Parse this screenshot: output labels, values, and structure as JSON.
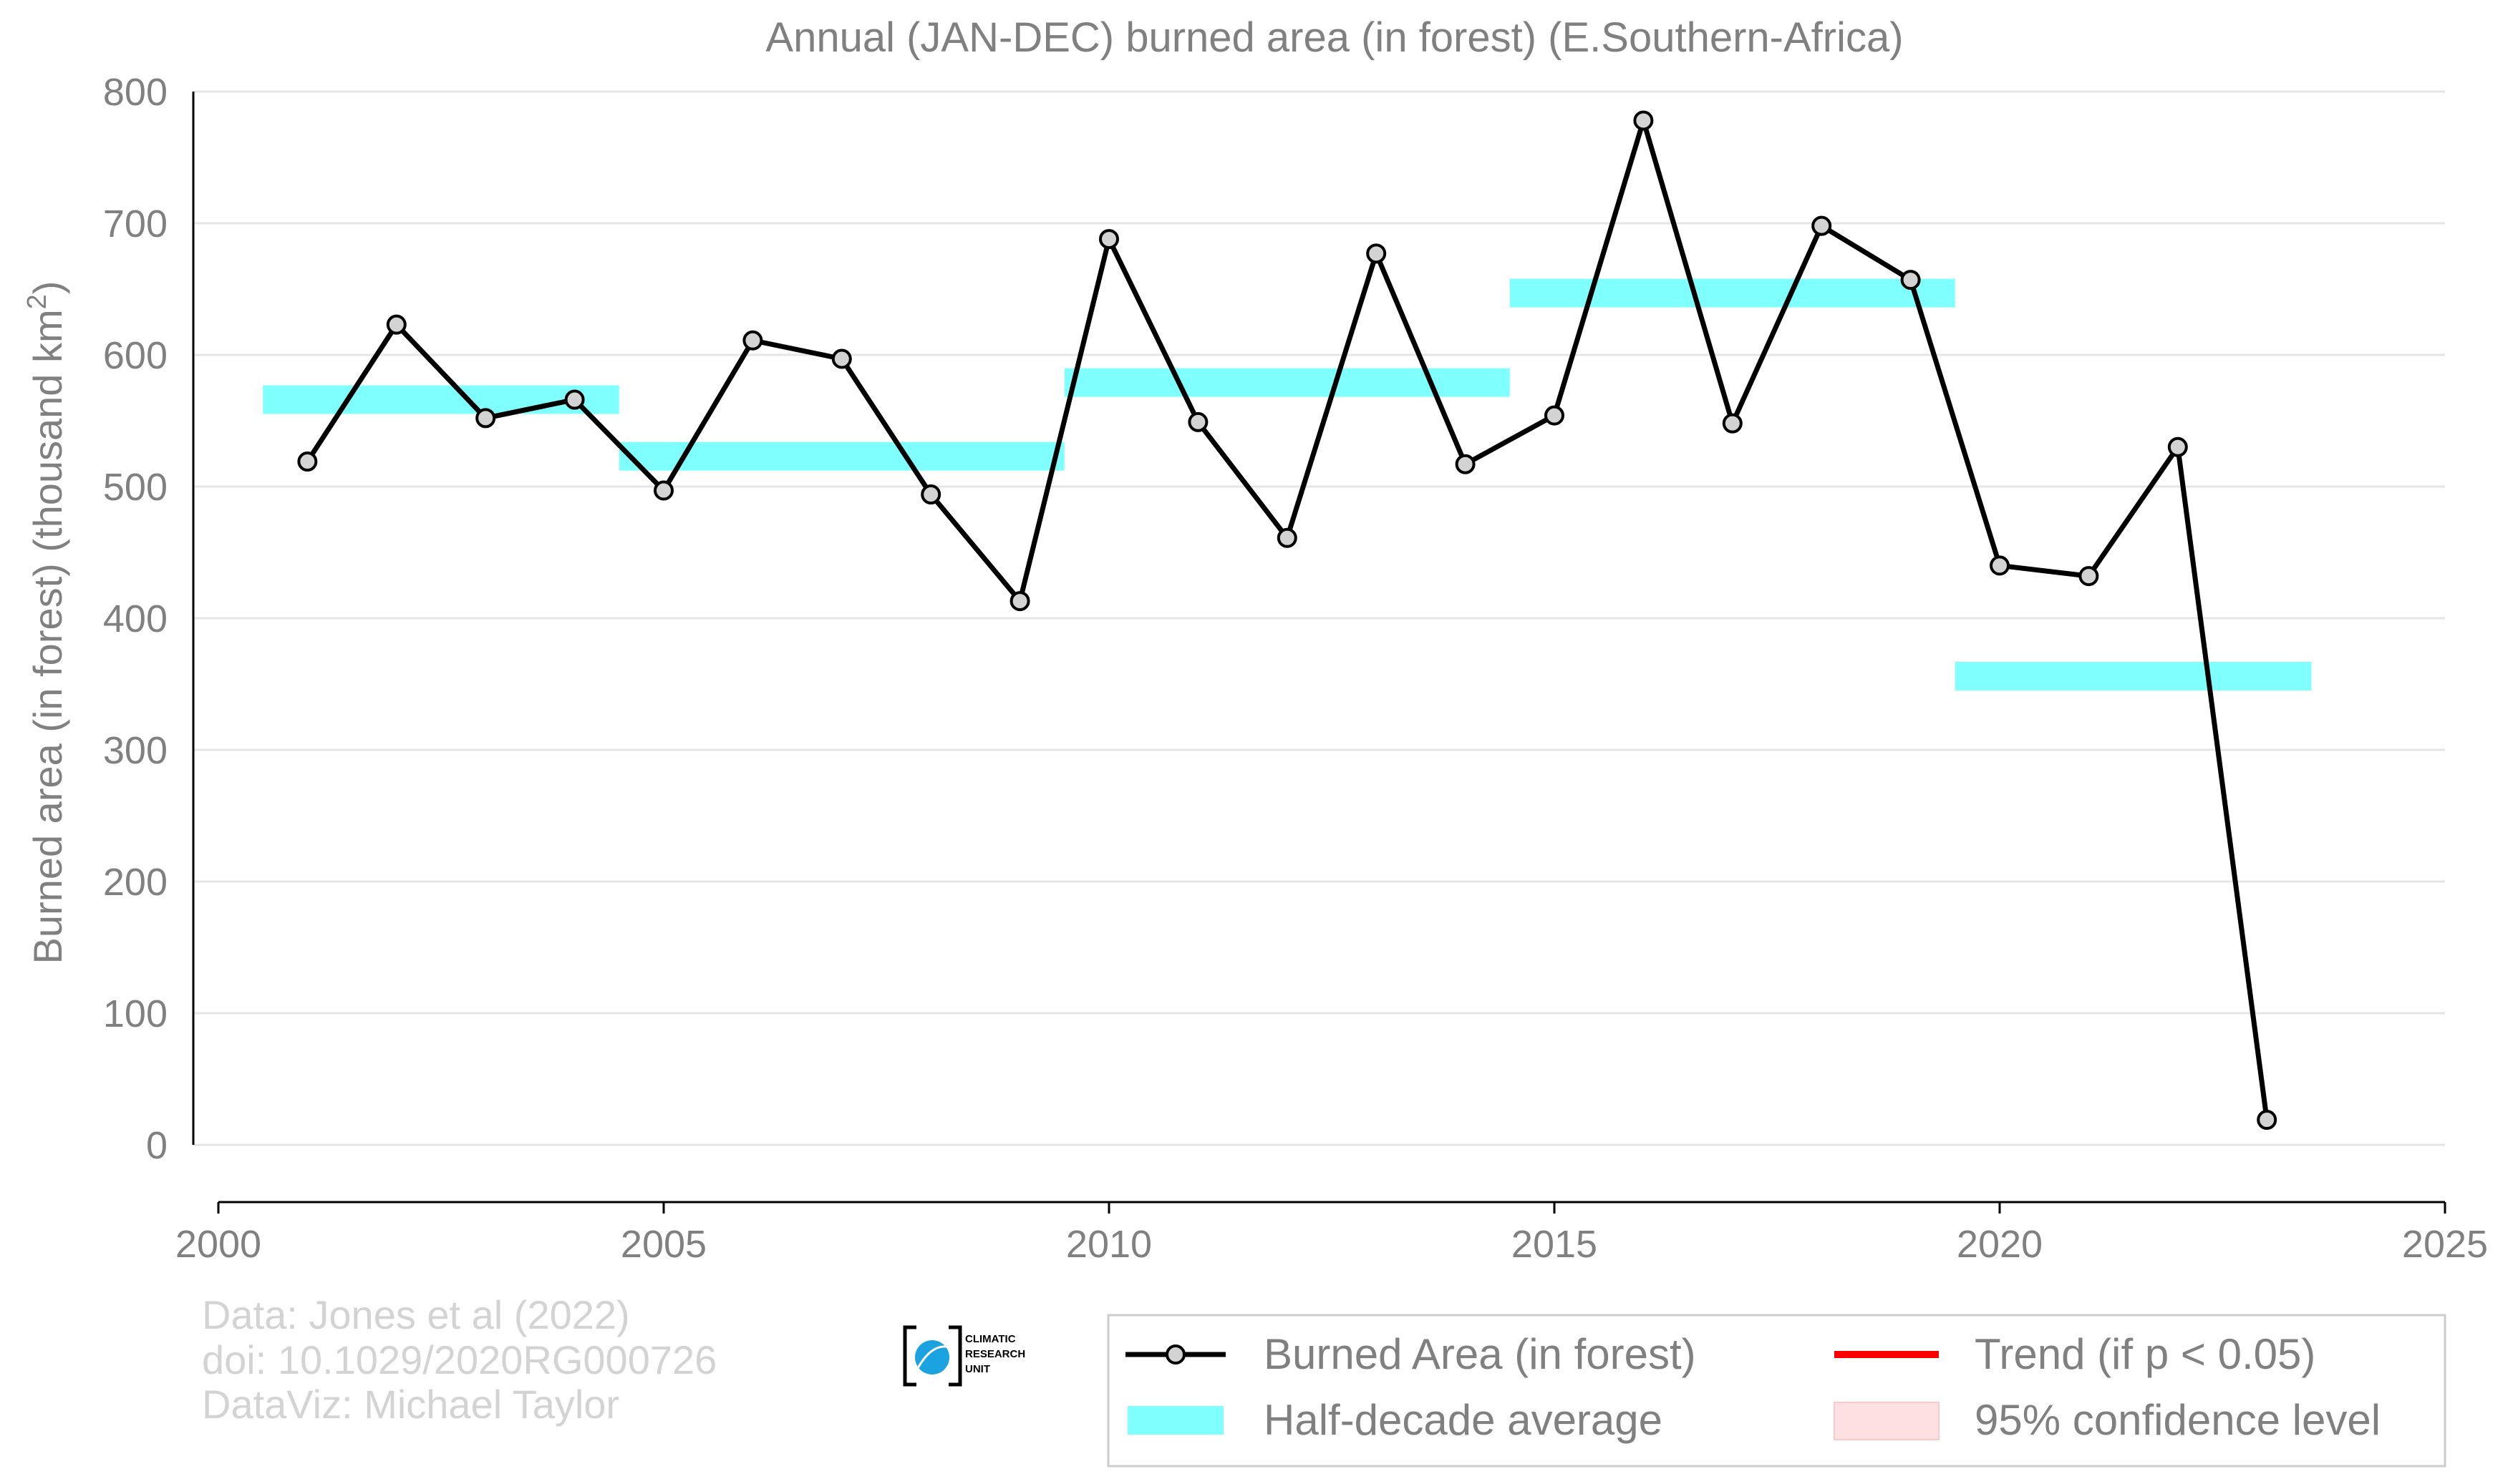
{
  "chart_data": {
    "type": "line",
    "title": "Annual (JAN-DEC) burned area (in forest) (E.Southern-Africa)",
    "ylabel": "Burned area (in forest) (thousand km",
    "ylabel_sup": "2",
    "ylabel_end": ")",
    "xlim": [
      2000,
      2025
    ],
    "ylim": [
      -40,
      800
    ],
    "xticks": [
      2000,
      2005,
      2010,
      2015,
      2020,
      2025
    ],
    "yticks": [
      0,
      100,
      200,
      300,
      400,
      500,
      600,
      700,
      800
    ],
    "grid": "horizontal",
    "legend_position": "bottom-right",
    "series": [
      {
        "name": "Burned Area (in forest)",
        "color": "#000000",
        "marker_fill": "#d3d3d3",
        "x": [
          2001,
          2002,
          2003,
          2004,
          2005,
          2006,
          2007,
          2008,
          2009,
          2010,
          2011,
          2012,
          2013,
          2014,
          2015,
          2016,
          2017,
          2018,
          2019,
          2020,
          2021,
          2022,
          2023
        ],
        "y": [
          519,
          623,
          552,
          566,
          497,
          611,
          597,
          494,
          413,
          688,
          549,
          461,
          677,
          517,
          554,
          778,
          548,
          698,
          657,
          440,
          432,
          530,
          19
        ]
      }
    ],
    "half_decade_average": {
      "name": "Half-decade average",
      "color": "#80ffff",
      "segments": [
        {
          "x0": 2000.5,
          "x1": 2004.5,
          "y": 566
        },
        {
          "x0": 2004.5,
          "x1": 2009.5,
          "y": 523
        },
        {
          "x0": 2009.5,
          "x1": 2014.5,
          "y": 579
        },
        {
          "x0": 2014.5,
          "x1": 2019.5,
          "y": 647
        },
        {
          "x0": 2019.5,
          "x1": 2023.5,
          "y": 356
        }
      ]
    },
    "legend": [
      {
        "label": "Burned Area (in forest)",
        "kind": "line-marker",
        "color": "#000000"
      },
      {
        "label": "Trend (if p < 0.05)",
        "kind": "line",
        "color": "#ff0000"
      },
      {
        "label": "Half-decade average",
        "kind": "band",
        "color": "#80ffff"
      },
      {
        "label": "95% confidence level",
        "kind": "patch",
        "color": "#ffe0e0"
      }
    ],
    "credits": [
      "Data: Jones et al (2022)",
      "doi: 10.1029/2020RG000726",
      "DataViz: Michael Taylor"
    ],
    "logo_text": [
      "CLIMATIC",
      "RESEARCH",
      "UNIT"
    ]
  }
}
